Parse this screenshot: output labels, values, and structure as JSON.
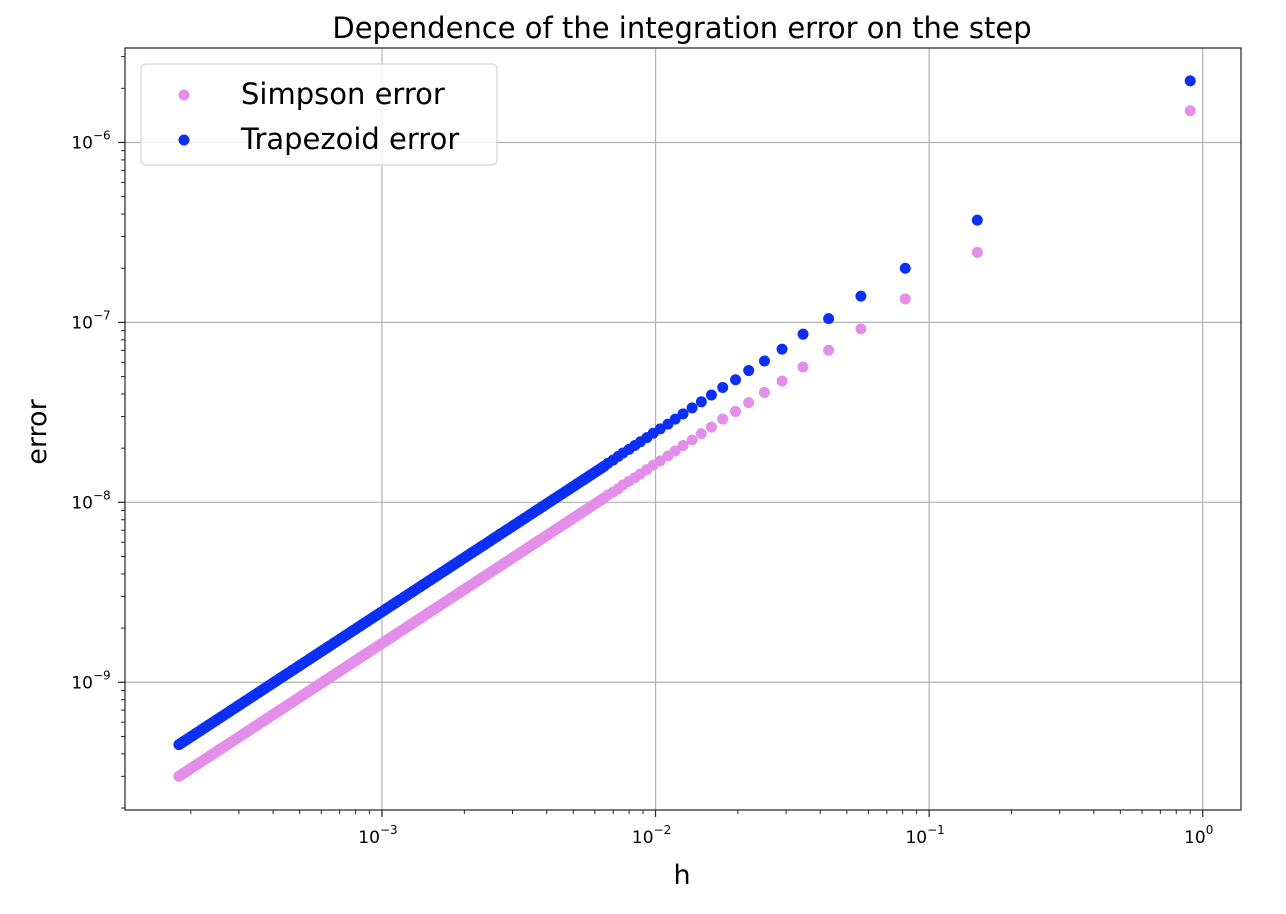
{
  "chart_data": {
    "type": "scatter",
    "title": "Dependence of the integration error on the step",
    "xlabel": "h",
    "ylabel": "error",
    "xscale": "log",
    "yscale": "log",
    "xlim": [
      0.000115,
      1.38
    ],
    "ylim": [
      1.95e-10,
      3.35e-06
    ],
    "grid": true,
    "legend_position": "top-left",
    "x_ticks": [
      {
        "value": 0.001,
        "base": "10",
        "exp": "−3"
      },
      {
        "value": 0.01,
        "base": "10",
        "exp": "−2"
      },
      {
        "value": 0.1,
        "base": "10",
        "exp": "−1"
      },
      {
        "value": 1,
        "base": "10",
        "exp": "0"
      }
    ],
    "y_ticks": [
      {
        "value": 1e-09,
        "base": "10",
        "exp": "−9"
      },
      {
        "value": 1e-08,
        "base": "10",
        "exp": "−8"
      },
      {
        "value": 1e-07,
        "base": "10",
        "exp": "−7"
      },
      {
        "value": 1e-06,
        "base": "10",
        "exp": "−6"
      }
    ],
    "series": [
      {
        "name": "Simpson error",
        "color": "#e38ee8",
        "x": [
          0.9,
          0.15,
          0.0818,
          0.0563,
          0.0429,
          0.0346,
          0.029,
          0.025,
          0.0219,
          0.0196,
          0.0176,
          0.016,
          0.0147,
          0.0136,
          0.0126,
          0.0118,
          0.0111,
          0.0104,
          0.0098,
          0.0093,
          0.0088,
          0.0084,
          0.008,
          0.0076,
          0.0073,
          0.007,
          0.0067,
          0.0065
        ],
        "y": [
          1.5e-06,
          2.45e-07,
          1.35e-07,
          9.2e-08,
          7e-08,
          5.65e-08,
          4.72e-08,
          4.08e-08,
          3.58e-08,
          3.2e-08,
          2.9e-08,
          2.62e-08,
          2.41e-08,
          2.22e-08,
          2.07e-08,
          1.93e-08,
          1.81e-08,
          1.7e-08,
          1.61e-08,
          1.52e-08,
          1.44e-08,
          1.37e-08,
          1.31e-08,
          1.25e-08,
          1.19e-08,
          1.14e-08,
          1.1e-08,
          1.06e-08
        ],
        "dense_tail": {
          "x_start": 0.0065,
          "y_start": 1.06e-08,
          "x_end": 0.000181,
          "y_end": 3e-10
        }
      },
      {
        "name": "Trapezoid error",
        "color": "#0b2ff5",
        "x": [
          0.9,
          0.15,
          0.0818,
          0.0563,
          0.0429,
          0.0346,
          0.029,
          0.025,
          0.0219,
          0.0196,
          0.0176,
          0.016,
          0.0147,
          0.0136,
          0.0126,
          0.0118,
          0.0111,
          0.0104,
          0.0098,
          0.0093,
          0.0088,
          0.0084,
          0.008,
          0.0076,
          0.0073,
          0.007,
          0.0067,
          0.0065
        ],
        "y": [
          2.2e-06,
          3.7e-07,
          2e-07,
          1.4e-07,
          1.05e-07,
          8.6e-08,
          7.1e-08,
          6.1e-08,
          5.4e-08,
          4.8e-08,
          4.35e-08,
          3.95e-08,
          3.62e-08,
          3.35e-08,
          3.1e-08,
          2.9e-08,
          2.72e-08,
          2.56e-08,
          2.42e-08,
          2.29e-08,
          2.17e-08,
          2.07e-08,
          1.97e-08,
          1.88e-08,
          1.8e-08,
          1.72e-08,
          1.65e-08,
          1.59e-08
        ],
        "dense_tail": {
          "x_start": 0.0065,
          "y_start": 1.59e-08,
          "x_end": 0.000181,
          "y_end": 4.5e-10
        }
      }
    ]
  }
}
